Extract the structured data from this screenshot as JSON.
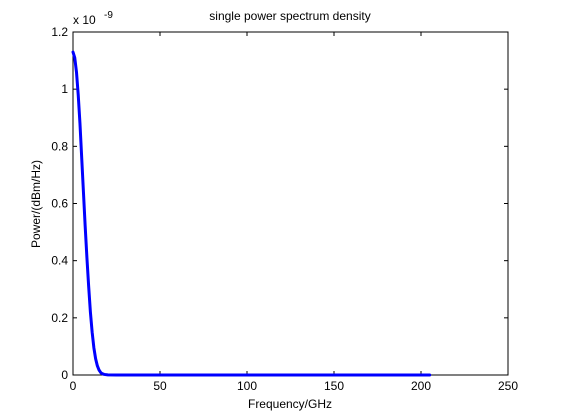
{
  "chart_data": {
    "type": "line",
    "title": "single power spectrum density",
    "xlabel": "Frequency/GHz",
    "ylabel": "Power/(dBm/Hz)",
    "exponent_label": "x 10",
    "exponent_power": "-9",
    "xlim": [
      0,
      250
    ],
    "ylim": [
      0,
      1.2
    ],
    "xticks": [
      "0",
      "50",
      "100",
      "150",
      "200",
      "250"
    ],
    "yticks": [
      "0",
      "0.2",
      "0.4",
      "0.6",
      "0.8",
      "1",
      "1.2"
    ],
    "grid": false,
    "series": [
      {
        "color": "#0000ff",
        "x": [
          0,
          1,
          2,
          3,
          4,
          5,
          6,
          7,
          8,
          9,
          10,
          11,
          12,
          13,
          14,
          15,
          16,
          17,
          18,
          20,
          25,
          30,
          50,
          100,
          150,
          205
        ],
        "y": [
          1.13,
          1.11,
          1.06,
          0.98,
          0.88,
          0.76,
          0.64,
          0.52,
          0.41,
          0.31,
          0.22,
          0.15,
          0.095,
          0.057,
          0.032,
          0.017,
          0.008,
          0.004,
          0.002,
          0.0005,
          0.0001,
          0,
          0,
          0,
          0,
          0
        ]
      }
    ]
  }
}
